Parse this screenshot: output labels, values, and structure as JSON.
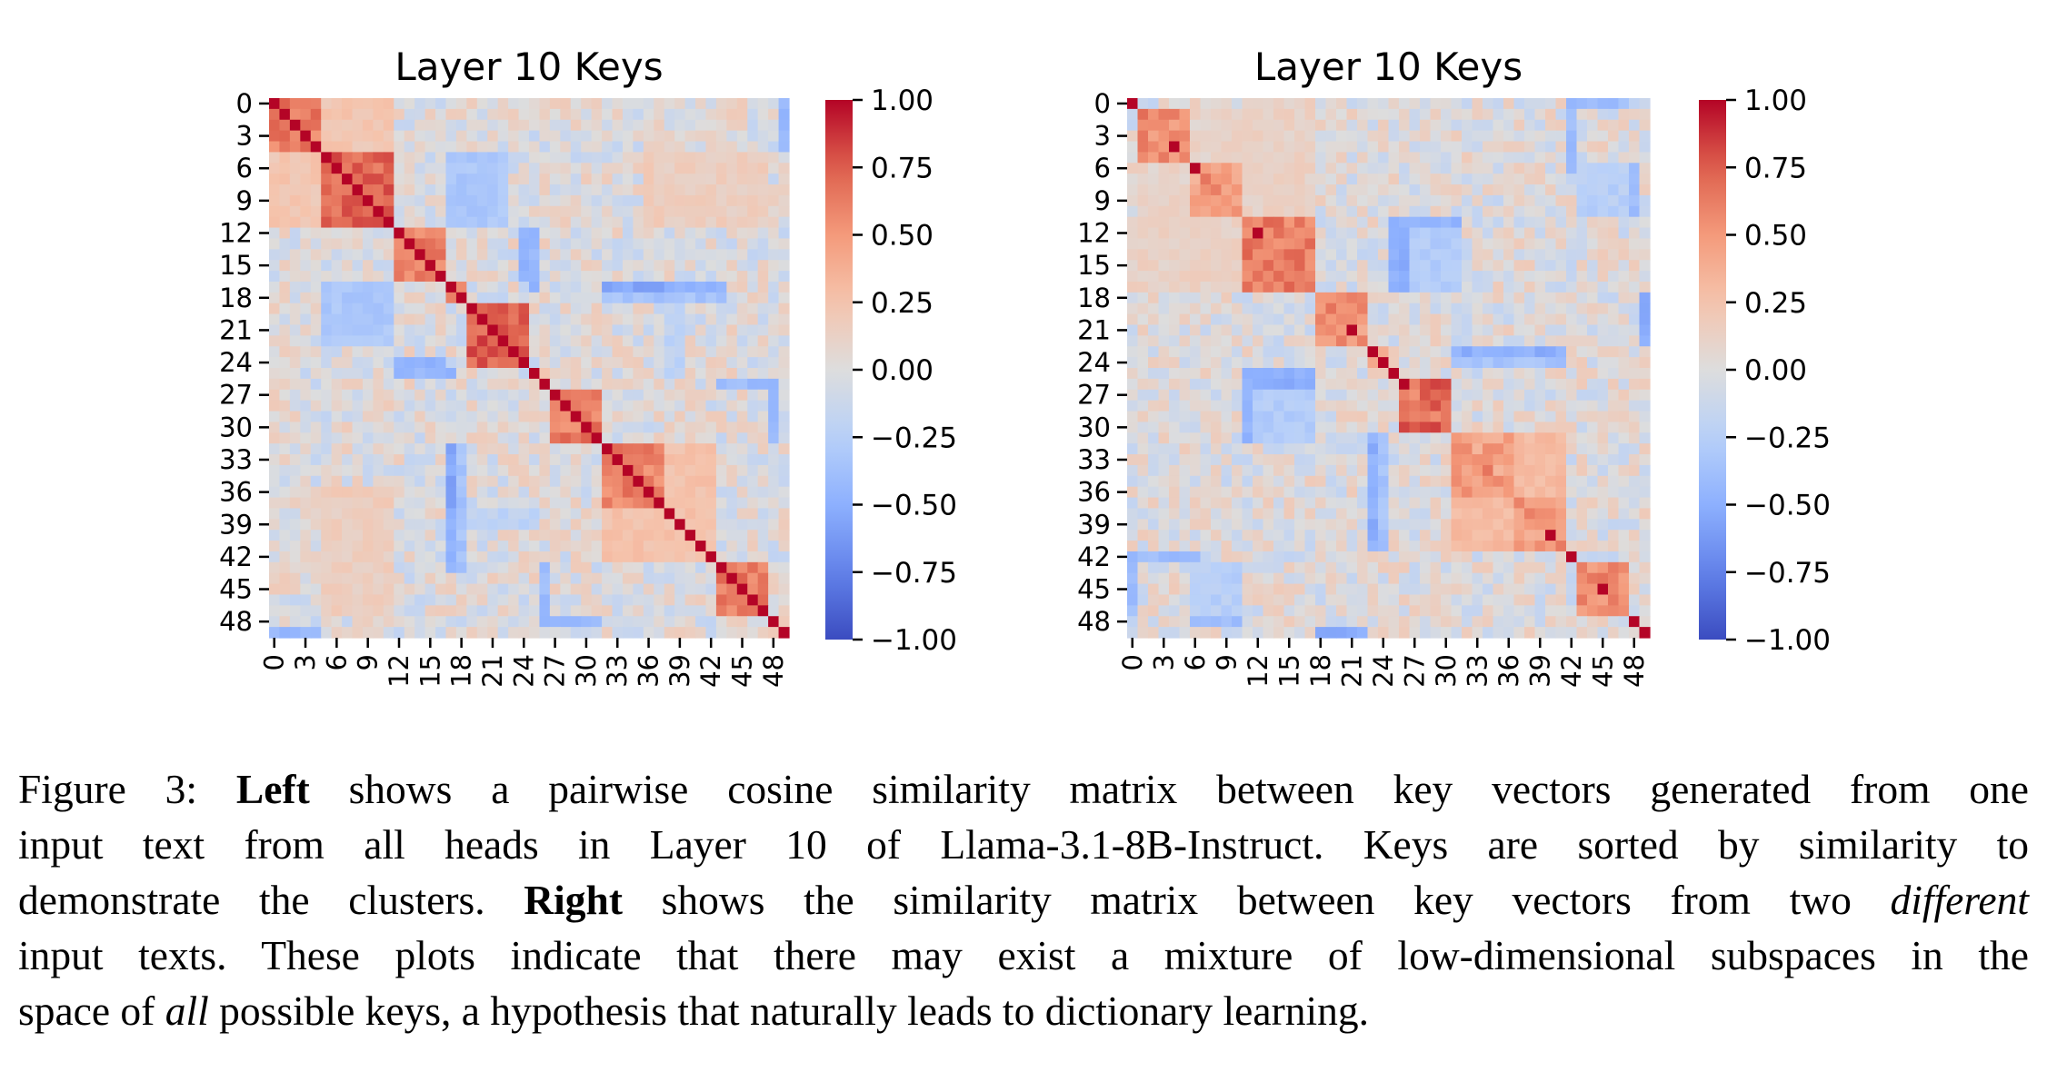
{
  "figure": {
    "label": "Figure 3:",
    "caption_segments": [
      [
        {
          "t": "Figure 3: ",
          "s": "n"
        },
        {
          "t": "Left",
          "s": "b"
        },
        {
          "t": " shows a pairwise cosine similarity matrix between key vectors generated from one",
          "s": "n"
        }
      ],
      [
        {
          "t": "input text from all heads in Layer 10 of Llama-3.1-8B-Instruct.  Keys are sorted by similarity to",
          "s": "n"
        }
      ],
      [
        {
          "t": "demonstrate the clusters. ",
          "s": "n"
        },
        {
          "t": "Right",
          "s": "b"
        },
        {
          "t": " shows the similarity matrix between key vectors from two ",
          "s": "n"
        },
        {
          "t": "different",
          "s": "i"
        }
      ],
      [
        {
          "t": "input texts. These plots indicate that there may exist a mixture of low-dimensional subspaces in the",
          "s": "n"
        }
      ],
      [
        {
          "t": "space of ",
          "s": "n"
        },
        {
          "t": "all",
          "s": "i"
        },
        {
          "t": " possible keys, a hypothesis that naturally leads to dictionary learning.",
          "s": "n"
        }
      ]
    ]
  },
  "chart_data": [
    {
      "type": "heatmap",
      "title": "Layer 10 Keys",
      "panel": "left",
      "n": 50,
      "xticks": [
        "0",
        "3",
        "6",
        "9",
        "12",
        "15",
        "18",
        "21",
        "24",
        "27",
        "30",
        "33",
        "36",
        "39",
        "42",
        "45",
        "48"
      ],
      "yticks": [
        "0",
        "3",
        "6",
        "9",
        "12",
        "15",
        "18",
        "21",
        "24",
        "27",
        "30",
        "33",
        "36",
        "39",
        "42",
        "45",
        "48"
      ],
      "colorbar": {
        "min": -1.0,
        "max": 1.0,
        "ticks": [
          "1.00",
          "0.75",
          "0.50",
          "0.25",
          "0.00",
          "−0.25",
          "−0.50",
          "−0.75",
          "−1.00"
        ],
        "colormap": "coolwarm"
      },
      "diagonal": 1.0,
      "clusters": [
        {
          "start": 0,
          "end": 4,
          "within": 0.62
        },
        {
          "start": 5,
          "end": 11,
          "within": 0.72
        },
        {
          "start": 12,
          "end": 16,
          "within": 0.62
        },
        {
          "start": 17,
          "end": 18,
          "within": 0.5
        },
        {
          "start": 19,
          "end": 24,
          "within": 0.75
        },
        {
          "start": 25,
          "end": 26,
          "within": 0.15
        },
        {
          "start": 27,
          "end": 31,
          "within": 0.62
        },
        {
          "start": 32,
          "end": 37,
          "within": 0.6
        },
        {
          "start": 38,
          "end": 42,
          "within": 0.62
        },
        {
          "start": 43,
          "end": 47,
          "within": 0.65
        },
        {
          "start": 48,
          "end": 48,
          "within": 1.0
        },
        {
          "start": 49,
          "end": 49,
          "within": 1.0
        }
      ],
      "cross_blocks": [
        {
          "rows": [
            0,
            4
          ],
          "cols": [
            5,
            11
          ],
          "value": 0.22
        },
        {
          "rows": [
            5,
            11
          ],
          "cols": [
            17,
            22
          ],
          "value": -0.32
        },
        {
          "rows": [
            12,
            16
          ],
          "cols": [
            24,
            24
          ],
          "value": -0.5
        },
        {
          "rows": [
            17,
            18
          ],
          "cols": [
            32,
            43
          ],
          "value": -0.45
        },
        {
          "rows": [
            25,
            25
          ],
          "cols": [
            12,
            17
          ],
          "value": -0.45
        },
        {
          "rows": [
            26,
            26
          ],
          "cols": [
            43,
            48
          ],
          "value": -0.4
        },
        {
          "rows": [
            27,
            31
          ],
          "cols": [
            48,
            48
          ],
          "value": -0.45
        },
        {
          "rows": [
            32,
            37
          ],
          "cols": [
            17,
            17
          ],
          "value": -0.55
        },
        {
          "rows": [
            32,
            42
          ],
          "cols": [
            18,
            18
          ],
          "value": -0.35
        },
        {
          "rows": [
            38,
            39
          ],
          "cols": [
            19,
            25
          ],
          "value": -0.2
        },
        {
          "rows": [
            32,
            42
          ],
          "cols": [
            38,
            42
          ],
          "value": 0.25
        },
        {
          "rows": [
            43,
            47
          ],
          "cols": [
            26,
            26
          ],
          "value": -0.4
        },
        {
          "rows": [
            48,
            48
          ],
          "cols": [
            26,
            31
          ],
          "value": -0.45
        },
        {
          "rows": [
            49,
            49
          ],
          "cols": [
            0,
            4
          ],
          "value": -0.4
        },
        {
          "rows": [
            0,
            4
          ],
          "cols": [
            49,
            49
          ],
          "value": -0.45
        },
        {
          "rows": [
            5,
            11
          ],
          "cols": [
            36,
            42
          ],
          "value": 0.18
        },
        {
          "rows": [
            38,
            47
          ],
          "cols": [
            5,
            11
          ],
          "value": 0.15
        }
      ]
    },
    {
      "type": "heatmap",
      "title": "Layer 10 Keys",
      "panel": "right",
      "n": 50,
      "xticks": [
        "0",
        "3",
        "6",
        "9",
        "12",
        "15",
        "18",
        "21",
        "24",
        "27",
        "30",
        "33",
        "36",
        "39",
        "42",
        "45",
        "48"
      ],
      "yticks": [
        "0",
        "3",
        "6",
        "9",
        "12",
        "15",
        "18",
        "21",
        "24",
        "27",
        "30",
        "33",
        "36",
        "39",
        "42",
        "45",
        "48"
      ],
      "colorbar": {
        "min": -1.0,
        "max": 1.0,
        "ticks": [
          "1.00",
          "0.75",
          "0.50",
          "0.25",
          "0.00",
          "−0.25",
          "−0.50",
          "−0.75",
          "−1.00"
        ],
        "colormap": "coolwarm"
      },
      "diagonal": 0.5,
      "strong_points": [
        [
          0,
          0
        ],
        [
          4,
          4
        ],
        [
          6,
          6
        ],
        [
          12,
          12
        ],
        [
          21,
          21
        ],
        [
          23,
          23
        ],
        [
          24,
          24
        ],
        [
          25,
          25
        ],
        [
          26,
          26
        ],
        [
          40,
          40
        ],
        [
          42,
          42
        ],
        [
          45,
          45
        ],
        [
          48,
          48
        ],
        [
          49,
          49
        ]
      ],
      "clusters": [
        {
          "start": 0,
          "end": 0,
          "within": 1.0
        },
        {
          "start": 1,
          "end": 5,
          "within": 0.55
        },
        {
          "start": 6,
          "end": 10,
          "within": 0.45
        },
        {
          "start": 11,
          "end": 17,
          "within": 0.62
        },
        {
          "start": 18,
          "end": 22,
          "within": 0.5
        },
        {
          "start": 23,
          "end": 24,
          "within": 0.4
        },
        {
          "start": 25,
          "end": 25,
          "within": 1.0
        },
        {
          "start": 26,
          "end": 30,
          "within": 0.72
        },
        {
          "start": 31,
          "end": 36,
          "within": 0.45
        },
        {
          "start": 37,
          "end": 41,
          "within": 0.48
        },
        {
          "start": 42,
          "end": 42,
          "within": 1.0
        },
        {
          "start": 43,
          "end": 47,
          "within": 0.55
        },
        {
          "start": 48,
          "end": 48,
          "within": 1.0
        },
        {
          "start": 49,
          "end": 49,
          "within": 1.0
        }
      ],
      "cross_blocks": [
        {
          "rows": [
            0,
            0
          ],
          "cols": [
            42,
            47
          ],
          "value": -0.45
        },
        {
          "rows": [
            1,
            5
          ],
          "cols": [
            42,
            42
          ],
          "value": -0.45
        },
        {
          "rows": [
            6,
            10
          ],
          "cols": [
            48,
            48
          ],
          "value": -0.45
        },
        {
          "rows": [
            11,
            11
          ],
          "cols": [
            26,
            31
          ],
          "value": -0.45
        },
        {
          "rows": [
            12,
            17
          ],
          "cols": [
            26,
            26
          ],
          "value": -0.5
        },
        {
          "rows": [
            12,
            17
          ],
          "cols": [
            27,
            31
          ],
          "value": -0.28
        },
        {
          "rows": [
            18,
            21
          ],
          "cols": [
            49,
            49
          ],
          "value": -0.45
        },
        {
          "rows": [
            23,
            23
          ],
          "cols": [
            32,
            41
          ],
          "value": -0.5
        },
        {
          "rows": [
            24,
            24
          ],
          "cols": [
            35,
            41
          ],
          "value": -0.45
        },
        {
          "rows": [
            25,
            25
          ],
          "cols": [
            11,
            17
          ],
          "value": -0.5
        },
        {
          "rows": [
            26,
            30
          ],
          "cols": [
            11,
            11
          ],
          "value": -0.45
        },
        {
          "rows": [
            31,
            36
          ],
          "cols": [
            23,
            23
          ],
          "value": -0.5
        },
        {
          "rows": [
            31,
            41
          ],
          "cols": [
            24,
            24
          ],
          "value": -0.35
        },
        {
          "rows": [
            31,
            36
          ],
          "cols": [
            37,
            41
          ],
          "value": 0.3
        },
        {
          "rows": [
            42,
            42
          ],
          "cols": [
            0,
            6
          ],
          "value": -0.4
        },
        {
          "rows": [
            43,
            47
          ],
          "cols": [
            0,
            0
          ],
          "value": -0.4
        },
        {
          "rows": [
            43,
            47
          ],
          "cols": [
            6,
            10
          ],
          "value": -0.25
        },
        {
          "rows": [
            48,
            48
          ],
          "cols": [
            6,
            10
          ],
          "value": -0.4
        },
        {
          "rows": [
            49,
            49
          ],
          "cols": [
            18,
            22
          ],
          "value": -0.5
        },
        {
          "rows": [
            1,
            5
          ],
          "cols": [
            6,
            10
          ],
          "value": 0.1
        },
        {
          "rows": [
            11,
            17
          ],
          "cols": [
            0,
            10
          ],
          "value": 0.12
        }
      ]
    }
  ]
}
